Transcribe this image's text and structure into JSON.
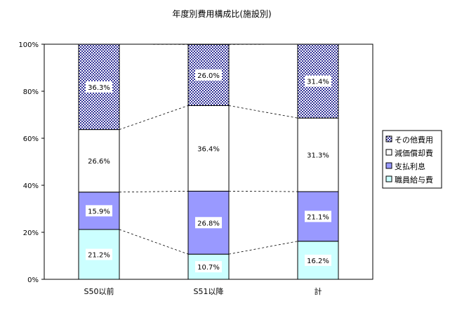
{
  "chart_data": {
    "type": "bar",
    "stacked": "percent",
    "title": "年度別費用構成比(施設別)",
    "categories": [
      "S50以前",
      "S51以降",
      "計"
    ],
    "series": [
      {
        "name": "職員給与費",
        "values": [
          21.2,
          10.7,
          16.2
        ],
        "labels": [
          "21.2%",
          "10.7%",
          "16.2%"
        ],
        "color": "#ccffff",
        "pattern": "solid"
      },
      {
        "name": "支払利息",
        "values": [
          15.9,
          26.8,
          21.1
        ],
        "labels": [
          "15.9%",
          "26.8%",
          "21.1%"
        ],
        "color": "#9999ff",
        "pattern": "solid"
      },
      {
        "name": "減価償却費",
        "values": [
          26.6,
          36.4,
          31.3
        ],
        "labels": [
          "26.6%",
          "36.4%",
          "31.3%"
        ],
        "color": "#ffffff",
        "pattern": "solid"
      },
      {
        "name": "その他費用",
        "values": [
          36.3,
          26.0,
          31.4
        ],
        "labels": [
          "36.3%",
          "26.0%",
          "31.4%"
        ],
        "color": "#333399",
        "pattern": "dots"
      }
    ],
    "legend_order": [
      "その他費用",
      "減価償却費",
      "支払利息",
      "職員給与費"
    ],
    "ylim": [
      0,
      100
    ],
    "yticks": [
      "0%",
      "20%",
      "40%",
      "60%",
      "80%",
      "100%"
    ],
    "ytick_values": [
      0,
      20,
      40,
      60,
      80,
      100
    ],
    "xlabel": "",
    "ylabel": "",
    "grid": false,
    "series_lines": true,
    "legend_position": "right"
  }
}
